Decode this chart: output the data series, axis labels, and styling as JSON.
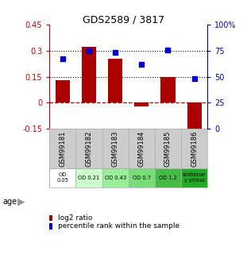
{
  "title": "GDS2589 / 3817",
  "samples": [
    "GSM99181",
    "GSM99182",
    "GSM99183",
    "GSM99184",
    "GSM99185",
    "GSM99186"
  ],
  "log2_ratio": [
    0.13,
    0.32,
    0.255,
    -0.02,
    0.15,
    -0.185
  ],
  "percentile_rank": [
    67,
    75,
    73,
    62,
    76,
    48
  ],
  "ylim_left": [
    -0.15,
    0.45
  ],
  "ylim_right": [
    0,
    100
  ],
  "yticks_left": [
    -0.15,
    0.0,
    0.15,
    0.3,
    0.45
  ],
  "yticks_right": [
    0,
    25,
    50,
    75,
    100
  ],
  "ytick_labels_left": [
    "-0.15",
    "0",
    "0.15",
    "0.3",
    "0.45"
  ],
  "ytick_labels_right": [
    "0",
    "25",
    "50",
    "75",
    "100%"
  ],
  "hlines": [
    0.15,
    0.3
  ],
  "bar_color": "#aa0000",
  "dot_color": "#0000cc",
  "zero_line_color": "#cc0000",
  "hline_color": "#000000",
  "age_labels": [
    "OD\n0.05",
    "OD 0.21",
    "OD 0.43",
    "OD 0.7",
    "OD 1.2",
    "stationar\ny phase"
  ],
  "age_colors": [
    "#ffffff",
    "#ccffcc",
    "#99ee99",
    "#77dd77",
    "#44bb44",
    "#22aa22"
  ],
  "sample_bg_color": "#cccccc",
  "sample_border_color": "#aaaaaa",
  "legend_red_label": "log2 ratio",
  "legend_blue_label": "percentile rank within the sample",
  "legend_red_color": "#aa0000",
  "legend_blue_color": "#0000cc"
}
